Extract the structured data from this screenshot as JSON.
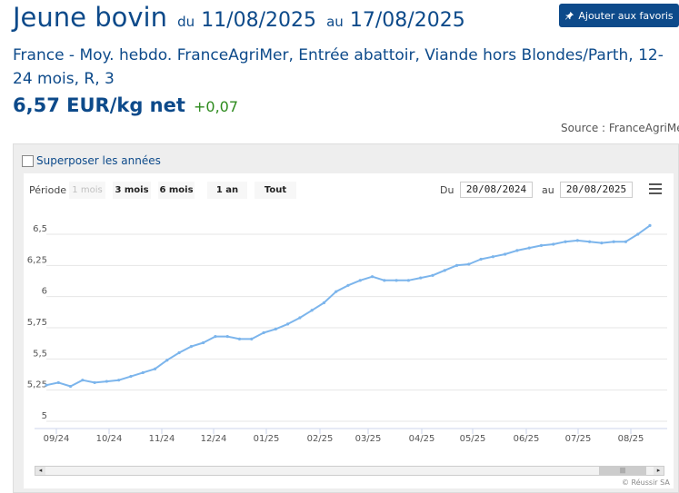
{
  "header": {
    "title": "Jeune bovin",
    "du_label": "du",
    "date_start": "11/08/2025",
    "au_label": "au",
    "date_end": "17/08/2025",
    "favorite_button": "Ajouter aux favoris",
    "favorite_icon": "pin-icon",
    "subtitle": "France - Moy. hebdo. FranceAgriMer, Entrée abattoir, Viande hors Blondes/Parth, 12-24 mois, R, 3",
    "price": "6,57 EUR/kg net",
    "variation": "+0,07",
    "source": "Source : FranceAgriMer"
  },
  "colors": {
    "brand": "#0d4a8a",
    "positive": "#2e8b1e",
    "series": "#7cb5ec"
  },
  "controls": {
    "overlay_years": "Superposer les années",
    "period_label": "Période",
    "periods": [
      "1 mois",
      "3 mois",
      "6 mois",
      "1 an",
      "Tout"
    ],
    "du_label": "Du",
    "from_date": "20/08/2024",
    "au_label": "au",
    "to_date": "20/08/2025",
    "menu_icon": "hamburger-menu-icon"
  },
  "chart_data": {
    "type": "line",
    "title": "",
    "xlabel": "",
    "ylabel": "",
    "ylim": [
      5,
      6.6
    ],
    "yticks": [
      "5",
      "5,25",
      "5,5",
      "5,75",
      "6",
      "6,25",
      "6,5"
    ],
    "xticks": [
      "09/24",
      "10/24",
      "11/24",
      "12/24",
      "01/25",
      "02/25",
      "03/25",
      "04/25",
      "05/25",
      "06/25",
      "07/25",
      "08/25"
    ],
    "grid": true,
    "legend": "none",
    "series": [
      {
        "values": [
          5.29,
          5.31,
          5.28,
          5.33,
          5.31,
          5.32,
          5.33,
          5.36,
          5.39,
          5.42,
          5.49,
          5.55,
          5.6,
          5.63,
          5.68,
          5.68,
          5.66,
          5.66,
          5.71,
          5.74,
          5.78,
          5.83,
          5.89,
          5.95,
          6.04,
          6.09,
          6.13,
          6.16,
          6.13,
          6.13,
          6.13,
          6.15,
          6.17,
          6.21,
          6.25,
          6.26,
          6.3,
          6.32,
          6.34,
          6.37,
          6.39,
          6.41,
          6.42,
          6.44,
          6.45,
          6.44,
          6.43,
          6.44,
          6.44,
          6.5,
          6.57
        ]
      }
    ]
  },
  "navigator": {
    "left_arrow": "◂",
    "thumb_grip": "|||",
    "right_arrow": "▸"
  },
  "credit": "© Réussir SA"
}
